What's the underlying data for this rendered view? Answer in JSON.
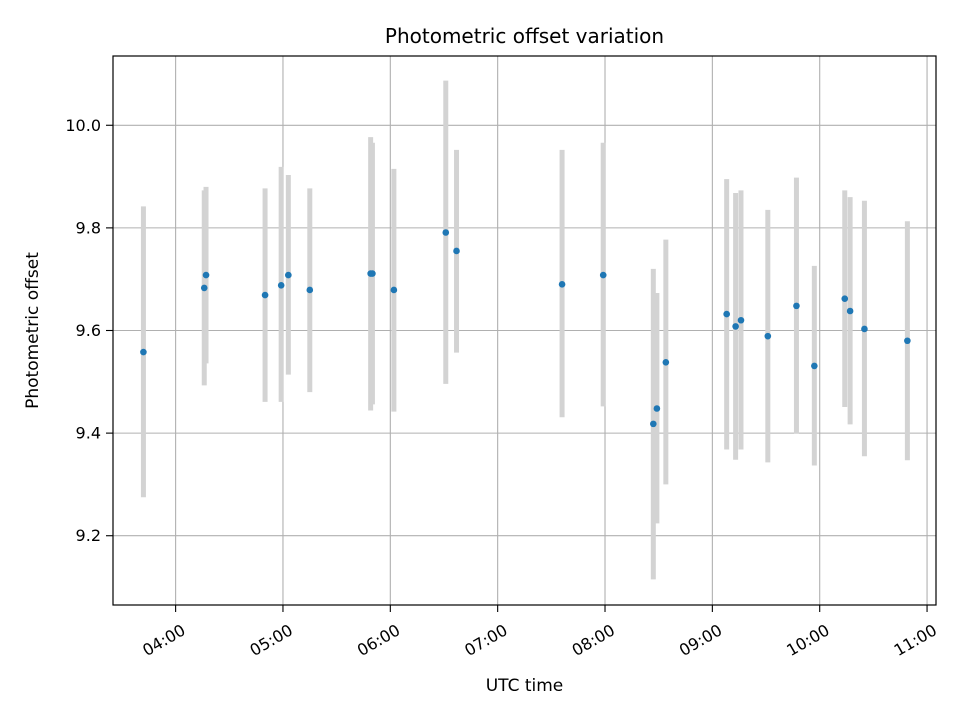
{
  "chart_data": {
    "type": "scatter",
    "title": "Photometric offset variation",
    "xlabel": "UTC time",
    "ylabel": "Photometric offset",
    "x_unit": "HH:MM UTC",
    "xlim": [
      "03:25",
      "11:05"
    ],
    "ylim": [
      9.065,
      10.135
    ],
    "x_ticks": [
      "04:00",
      "05:00",
      "06:00",
      "07:00",
      "08:00",
      "09:00",
      "10:00",
      "11:00"
    ],
    "y_ticks": [
      9.2,
      9.4,
      9.6,
      9.8,
      10.0
    ],
    "y_tick_labels": [
      "9.2",
      "9.4",
      "9.6",
      "9.8",
      "10.0"
    ],
    "grid": true,
    "colors": {
      "point": "#1f77b4",
      "errorbar": "#d3d3d3",
      "grid": "#b0b0b0",
      "axes": "#000000"
    },
    "points": [
      {
        "x": "03:42",
        "y": 9.558,
        "yerr_low": 9.275,
        "yerr_high": 9.842
      },
      {
        "x": "04:16",
        "y": 9.683,
        "yerr_low": 9.493,
        "yerr_high": 9.873
      },
      {
        "x": "04:17",
        "y": 9.708,
        "yerr_low": 9.536,
        "yerr_high": 9.88
      },
      {
        "x": "04:50",
        "y": 9.669,
        "yerr_low": 9.461,
        "yerr_high": 9.877
      },
      {
        "x": "04:59",
        "y": 9.688,
        "yerr_low": 9.461,
        "yerr_high": 9.919
      },
      {
        "x": "05:03",
        "y": 9.708,
        "yerr_low": 9.514,
        "yerr_high": 9.903
      },
      {
        "x": "05:15",
        "y": 9.679,
        "yerr_low": 9.48,
        "yerr_high": 9.877
      },
      {
        "x": "05:49",
        "y": 9.711,
        "yerr_low": 9.444,
        "yerr_high": 9.977
      },
      {
        "x": "05:50",
        "y": 9.711,
        "yerr_low": 9.456,
        "yerr_high": 9.966
      },
      {
        "x": "06:02",
        "y": 9.679,
        "yerr_low": 9.442,
        "yerr_high": 9.915
      },
      {
        "x": "06:31",
        "y": 9.791,
        "yerr_low": 9.496,
        "yerr_high": 10.087
      },
      {
        "x": "06:37",
        "y": 9.755,
        "yerr_low": 9.557,
        "yerr_high": 9.952
      },
      {
        "x": "07:36",
        "y": 9.69,
        "yerr_low": 9.431,
        "yerr_high": 9.952
      },
      {
        "x": "07:59",
        "y": 9.708,
        "yerr_low": 9.452,
        "yerr_high": 9.966
      },
      {
        "x": "08:27",
        "y": 9.418,
        "yerr_low": 9.115,
        "yerr_high": 9.72
      },
      {
        "x": "08:29",
        "y": 9.448,
        "yerr_low": 9.224,
        "yerr_high": 9.673
      },
      {
        "x": "08:34",
        "y": 9.538,
        "yerr_low": 9.3,
        "yerr_high": 9.777
      },
      {
        "x": "09:08",
        "y": 9.632,
        "yerr_low": 9.368,
        "yerr_high": 9.895
      },
      {
        "x": "09:13",
        "y": 9.608,
        "yerr_low": 9.348,
        "yerr_high": 9.868
      },
      {
        "x": "09:16",
        "y": 9.62,
        "yerr_low": 9.368,
        "yerr_high": 9.873
      },
      {
        "x": "09:31",
        "y": 9.589,
        "yerr_low": 9.343,
        "yerr_high": 9.835
      },
      {
        "x": "09:47",
        "y": 9.648,
        "yerr_low": 9.399,
        "yerr_high": 9.898
      },
      {
        "x": "09:57",
        "y": 9.531,
        "yerr_low": 9.337,
        "yerr_high": 9.726
      },
      {
        "x": "10:14",
        "y": 9.662,
        "yerr_low": 9.451,
        "yerr_high": 9.873
      },
      {
        "x": "10:17",
        "y": 9.638,
        "yerr_low": 9.417,
        "yerr_high": 9.86
      },
      {
        "x": "10:25",
        "y": 9.603,
        "yerr_low": 9.355,
        "yerr_high": 9.853
      },
      {
        "x": "10:49",
        "y": 9.58,
        "yerr_low": 9.347,
        "yerr_high": 9.813
      }
    ]
  }
}
